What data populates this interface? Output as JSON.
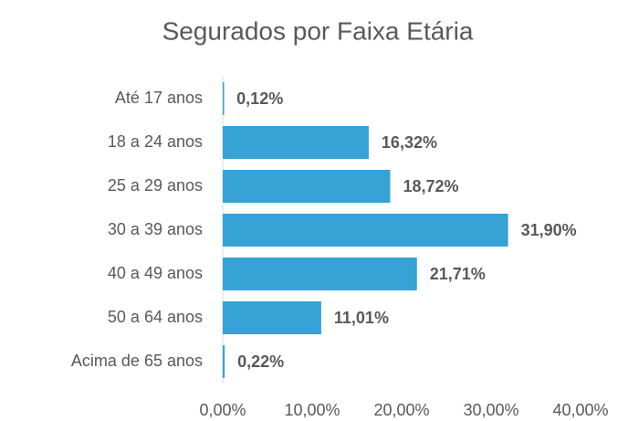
{
  "chart_data": {
    "type": "hbar",
    "title": "Segurados por Faixa Etária",
    "categories": [
      "Até 17 anos",
      "18 a 24 anos",
      "25 a 29 anos",
      "30 a 39 anos",
      "40 a 49 anos",
      "50 a 64 anos",
      "Acima de 65 anos"
    ],
    "values": [
      0.12,
      16.32,
      18.72,
      31.9,
      21.71,
      11.01,
      0.22
    ],
    "value_labels": [
      "0,12%",
      "16,32%",
      "18,72%",
      "31,90%",
      "21,71%",
      "11,01%",
      "0,22%"
    ],
    "color": "#36a2d6",
    "xlim": [
      0,
      40
    ],
    "xticks": [
      {
        "value": 0,
        "label": "0,00%"
      },
      {
        "value": 10,
        "label": "10,00%"
      },
      {
        "value": 20,
        "label": "20,00%"
      },
      {
        "value": 30,
        "label": "30,00%"
      },
      {
        "value": 40,
        "label": "40,00%"
      }
    ],
    "grid": false
  }
}
